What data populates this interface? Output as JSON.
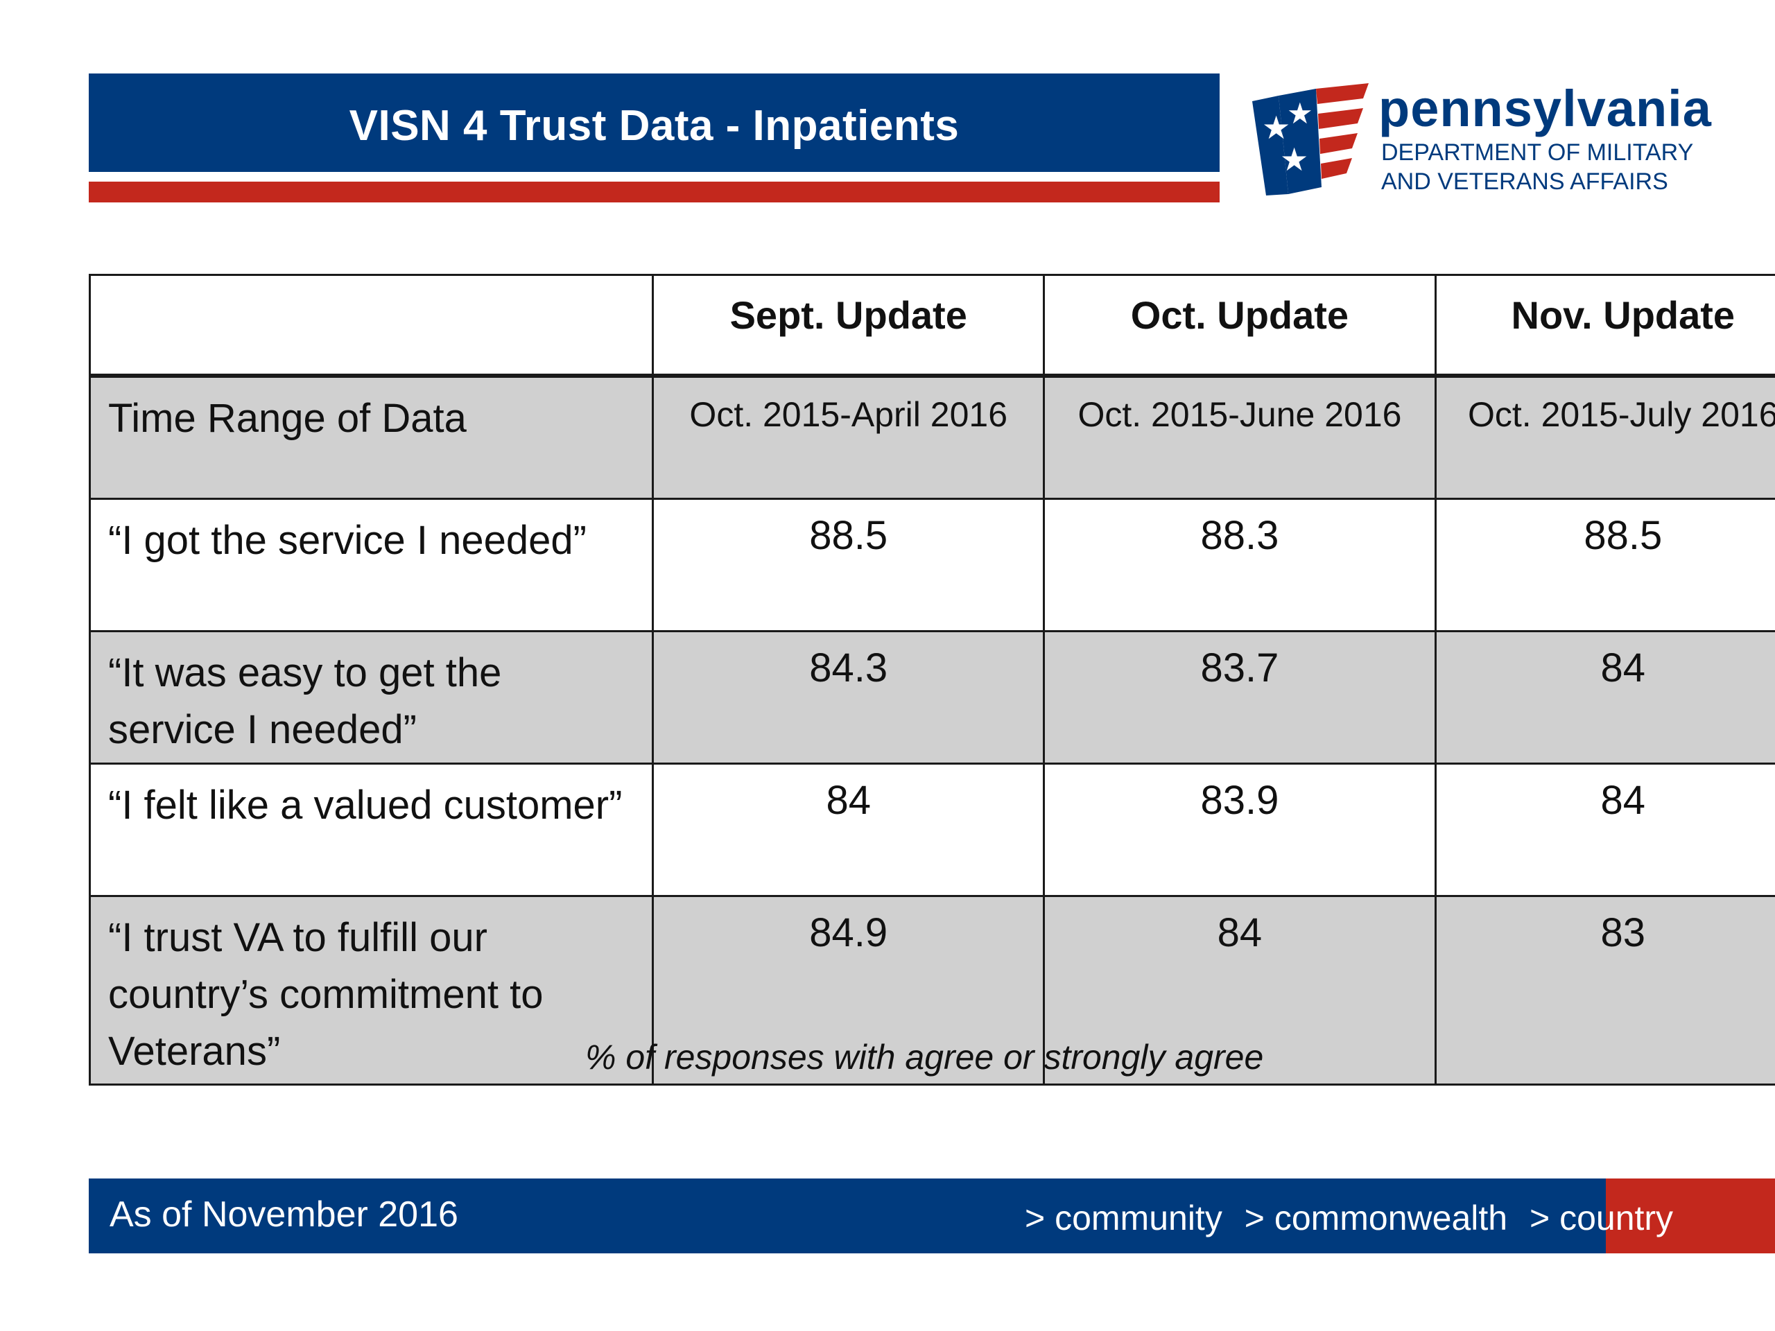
{
  "header": {
    "title": "VISN 4 Trust Data - Inpatients"
  },
  "logo": {
    "name": "pennsylvania",
    "line1": "DEPARTMENT OF MILITARY",
    "line2": "AND VETERANS AFFAIRS",
    "colors": {
      "blue": "#003a7d",
      "red": "#c3281d"
    }
  },
  "table": {
    "columns": [
      "",
      "Sept. Update",
      "Oct. Update",
      "Nov. Update"
    ],
    "rows": [
      {
        "label": "Time Range of Data",
        "values": [
          "Oct. 2015-April 2016",
          "Oct. 2015-June 2016",
          "Oct. 2015-July 2016"
        ]
      },
      {
        "label": "“I got the service I needed”",
        "values": [
          "88.5",
          "88.3",
          "88.5"
        ]
      },
      {
        "label": "“It was easy to get the service I needed”",
        "values": [
          "84.3",
          "83.7",
          "84"
        ]
      },
      {
        "label": "“I felt like a valued customer”",
        "values": [
          "84",
          "83.9",
          "84"
        ]
      },
      {
        "label": "“I trust VA to fulfill our country’s commitment to Veterans”",
        "values": [
          "84.9",
          "84",
          "83"
        ]
      }
    ]
  },
  "note": "% of responses with agree or strongly agree",
  "footer": {
    "left": "As of November 2016",
    "crumbs": [
      "> community",
      "> commonwealth",
      "> country"
    ]
  }
}
